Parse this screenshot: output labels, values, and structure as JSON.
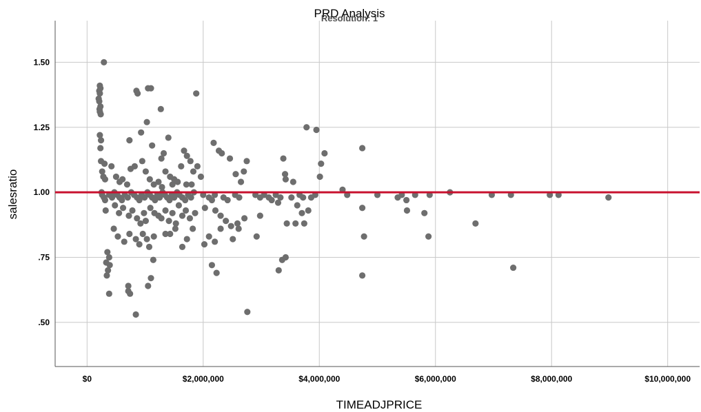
{
  "chart_data": {
    "type": "scatter",
    "title": "PRD Analysis",
    "subtitle": "Resolution: 1",
    "xlabel": "TIMEADJPRICE",
    "ylabel": "salesratio",
    "xlim": [
      -550000,
      10550000
    ],
    "ylim": [
      0.33,
      1.66
    ],
    "x_ticks": [
      0,
      2000000,
      4000000,
      6000000,
      8000000,
      10000000
    ],
    "x_tick_labels": [
      "$0",
      "$2,000,000",
      "$4,000,000",
      "$6,000,000",
      "$8,000,000",
      "$10,000,000"
    ],
    "y_ticks": [
      0.5,
      0.75,
      1.0,
      1.25,
      1.5
    ],
    "y_tick_labels": [
      ".50",
      ".75",
      "1.00",
      "1.25",
      "1.50"
    ],
    "grid": true,
    "reference_line": {
      "axis": "y",
      "value": 1.0,
      "color": "#c8102e"
    },
    "marker_color": "#6e6e6e",
    "points": [
      [
        290000,
        1.5
      ],
      [
        220000,
        1.41
      ],
      [
        230000,
        1.4
      ],
      [
        210000,
        1.39
      ],
      [
        220000,
        1.38
      ],
      [
        200000,
        1.36
      ],
      [
        210000,
        1.35
      ],
      [
        230000,
        1.33
      ],
      [
        215000,
        1.32
      ],
      [
        220000,
        1.31
      ],
      [
        235000,
        1.3
      ],
      [
        850000,
        1.39
      ],
      [
        870000,
        1.38
      ],
      [
        1050000,
        1.4
      ],
      [
        1100000,
        1.4
      ],
      [
        1880000,
        1.38
      ],
      [
        1270000,
        1.32
      ],
      [
        1030000,
        1.27
      ],
      [
        220000,
        1.22
      ],
      [
        240000,
        1.2
      ],
      [
        230000,
        1.17
      ],
      [
        730000,
        1.2
      ],
      [
        930000,
        1.23
      ],
      [
        1400000,
        1.21
      ],
      [
        1120000,
        1.18
      ],
      [
        1320000,
        1.15
      ],
      [
        1280000,
        1.13
      ],
      [
        240000,
        1.12
      ],
      [
        300000,
        1.11
      ],
      [
        260000,
        1.08
      ],
      [
        280000,
        1.06
      ],
      [
        310000,
        1.05
      ],
      [
        420000,
        1.1
      ],
      [
        500000,
        1.06
      ],
      [
        560000,
        1.04
      ],
      [
        610000,
        1.05
      ],
      [
        690000,
        1.03
      ],
      [
        750000,
        1.09
      ],
      [
        820000,
        1.1
      ],
      [
        950000,
        1.12
      ],
      [
        1010000,
        1.08
      ],
      [
        1080000,
        1.05
      ],
      [
        1150000,
        1.03
      ],
      [
        1230000,
        1.04
      ],
      [
        1290000,
        1.02
      ],
      [
        1350000,
        1.08
      ],
      [
        1430000,
        1.06
      ],
      [
        1500000,
        1.05
      ],
      [
        1560000,
        1.04
      ],
      [
        1620000,
        1.1
      ],
      [
        1670000,
        1.16
      ],
      [
        1720000,
        1.14
      ],
      [
        1780000,
        1.12
      ],
      [
        1830000,
        1.08
      ],
      [
        1900000,
        1.1
      ],
      [
        1960000,
        1.06
      ],
      [
        1470000,
        1.03
      ],
      [
        1710000,
        1.03
      ],
      [
        1800000,
        1.03
      ],
      [
        2180000,
        1.19
      ],
      [
        2270000,
        1.16
      ],
      [
        2320000,
        1.15
      ],
      [
        2460000,
        1.13
      ],
      [
        2560000,
        1.07
      ],
      [
        2650000,
        1.04
      ],
      [
        2750000,
        1.12
      ],
      [
        2700000,
        1.08
      ],
      [
        3380000,
        1.13
      ],
      [
        3410000,
        1.07
      ],
      [
        3550000,
        1.04
      ],
      [
        3420000,
        1.05
      ],
      [
        3780000,
        1.25
      ],
      [
        3950000,
        1.24
      ],
      [
        4030000,
        1.11
      ],
      [
        4090000,
        1.15
      ],
      [
        4010000,
        1.06
      ],
      [
        4740000,
        1.17
      ],
      [
        250000,
        1.0
      ],
      [
        260000,
        0.99
      ],
      [
        290000,
        0.98
      ],
      [
        310000,
        0.97
      ],
      [
        380000,
        0.99
      ],
      [
        430000,
        0.98
      ],
      [
        470000,
        1.0
      ],
      [
        520000,
        0.99
      ],
      [
        560000,
        0.98
      ],
      [
        600000,
        0.97
      ],
      [
        650000,
        0.99
      ],
      [
        700000,
        0.98
      ],
      [
        760000,
        1.0
      ],
      [
        810000,
        0.99
      ],
      [
        860000,
        0.98
      ],
      [
        900000,
        0.97
      ],
      [
        940000,
        0.99
      ],
      [
        990000,
        0.98
      ],
      [
        1040000,
        1.0
      ],
      [
        1080000,
        0.99
      ],
      [
        1120000,
        0.98
      ],
      [
        1170000,
        0.97
      ],
      [
        1210000,
        0.99
      ],
      [
        1250000,
        0.98
      ],
      [
        1300000,
        1.0
      ],
      [
        1340000,
        0.99
      ],
      [
        1380000,
        0.98
      ],
      [
        1420000,
        0.97
      ],
      [
        1460000,
        0.99
      ],
      [
        1500000,
        0.98
      ],
      [
        1550000,
        1.0
      ],
      [
        1590000,
        0.99
      ],
      [
        1640000,
        0.98
      ],
      [
        1690000,
        0.97
      ],
      [
        1740000,
        0.99
      ],
      [
        1790000,
        0.98
      ],
      [
        1840000,
        1.0
      ],
      [
        2000000,
        0.99
      ],
      [
        2100000,
        0.98
      ],
      [
        2150000,
        0.97
      ],
      [
        2200000,
        0.99
      ],
      [
        2350000,
        0.98
      ],
      [
        2420000,
        0.97
      ],
      [
        2550000,
        0.99
      ],
      [
        2620000,
        0.98
      ],
      [
        2900000,
        0.99
      ],
      [
        2980000,
        0.98
      ],
      [
        3050000,
        0.99
      ],
      [
        3130000,
        0.98
      ],
      [
        3180000,
        0.97
      ],
      [
        3250000,
        0.99
      ],
      [
        3330000,
        0.98
      ],
      [
        3520000,
        0.98
      ],
      [
        3660000,
        0.99
      ],
      [
        3720000,
        0.98
      ],
      [
        3860000,
        0.98
      ],
      [
        3930000,
        0.99
      ],
      [
        4400000,
        1.01
      ],
      [
        4480000,
        0.99
      ],
      [
        5000000,
        0.99
      ],
      [
        5350000,
        0.98
      ],
      [
        5420000,
        0.99
      ],
      [
        5500000,
        0.97
      ],
      [
        5650000,
        0.99
      ],
      [
        5900000,
        0.99
      ],
      [
        6250000,
        1.0
      ],
      [
        6970000,
        0.99
      ],
      [
        7300000,
        0.99
      ],
      [
        7970000,
        0.99
      ],
      [
        8120000,
        0.99
      ],
      [
        8980000,
        0.98
      ],
      [
        320000,
        0.93
      ],
      [
        480000,
        0.95
      ],
      [
        550000,
        0.92
      ],
      [
        620000,
        0.94
      ],
      [
        720000,
        0.91
      ],
      [
        780000,
        0.93
      ],
      [
        860000,
        0.9
      ],
      [
        920000,
        0.88
      ],
      [
        980000,
        0.92
      ],
      [
        1010000,
        0.89
      ],
      [
        1090000,
        0.94
      ],
      [
        1160000,
        0.92
      ],
      [
        1230000,
        0.91
      ],
      [
        1280000,
        0.9
      ],
      [
        1350000,
        0.93
      ],
      [
        1410000,
        0.89
      ],
      [
        1470000,
        0.92
      ],
      [
        1530000,
        0.88
      ],
      [
        1580000,
        0.95
      ],
      [
        1640000,
        0.91
      ],
      [
        1700000,
        0.93
      ],
      [
        1770000,
        0.9
      ],
      [
        1860000,
        0.92
      ],
      [
        2030000,
        0.94
      ],
      [
        2210000,
        0.93
      ],
      [
        2300000,
        0.91
      ],
      [
        2390000,
        0.89
      ],
      [
        2480000,
        0.87
      ],
      [
        2590000,
        0.88
      ],
      [
        2710000,
        0.9
      ],
      [
        2980000,
        0.91
      ],
      [
        3290000,
        0.96
      ],
      [
        3620000,
        0.95
      ],
      [
        3700000,
        0.92
      ],
      [
        3810000,
        0.93
      ],
      [
        3590000,
        0.88
      ],
      [
        4740000,
        0.94
      ],
      [
        5510000,
        0.93
      ],
      [
        5810000,
        0.92
      ],
      [
        460000,
        0.86
      ],
      [
        530000,
        0.83
      ],
      [
        640000,
        0.81
      ],
      [
        730000,
        0.84
      ],
      [
        840000,
        0.82
      ],
      [
        900000,
        0.8
      ],
      [
        960000,
        0.84
      ],
      [
        1030000,
        0.82
      ],
      [
        1070000,
        0.79
      ],
      [
        1150000,
        0.83
      ],
      [
        1350000,
        0.84
      ],
      [
        1430000,
        0.84
      ],
      [
        1520000,
        0.86
      ],
      [
        1640000,
        0.79
      ],
      [
        1720000,
        0.82
      ],
      [
        1820000,
        0.86
      ],
      [
        2020000,
        0.8
      ],
      [
        2100000,
        0.83
      ],
      [
        2200000,
        0.81
      ],
      [
        2300000,
        0.86
      ],
      [
        2510000,
        0.82
      ],
      [
        2610000,
        0.86
      ],
      [
        2920000,
        0.83
      ],
      [
        3440000,
        0.88
      ],
      [
        3740000,
        0.88
      ],
      [
        4770000,
        0.83
      ],
      [
        5880000,
        0.83
      ],
      [
        6690000,
        0.88
      ],
      [
        330000,
        0.73
      ],
      [
        350000,
        0.77
      ],
      [
        380000,
        0.75
      ],
      [
        360000,
        0.7
      ],
      [
        390000,
        0.72
      ],
      [
        340000,
        0.68
      ],
      [
        1140000,
        0.74
      ],
      [
        2150000,
        0.72
      ],
      [
        2230000,
        0.69
      ],
      [
        3360000,
        0.74
      ],
      [
        3420000,
        0.75
      ],
      [
        3300000,
        0.7
      ],
      [
        4740000,
        0.68
      ],
      [
        7340000,
        0.71
      ],
      [
        710000,
        0.64
      ],
      [
        710000,
        0.62
      ],
      [
        740000,
        0.61
      ],
      [
        1050000,
        0.64
      ],
      [
        1100000,
        0.67
      ],
      [
        380000,
        0.61
      ],
      [
        840000,
        0.53
      ],
      [
        2760000,
        0.54
      ]
    ]
  }
}
